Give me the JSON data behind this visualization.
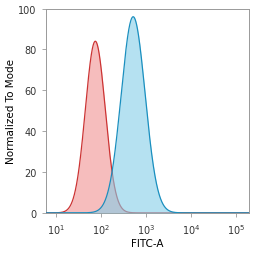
{
  "title": "",
  "xlabel": "FITC-A",
  "ylabel": "Normalized To Mode",
  "xlim_log": [
    0.78,
    5.3
  ],
  "ylim": [
    0,
    100
  ],
  "yticks": [
    0,
    20,
    40,
    60,
    80,
    100
  ],
  "red_peak_log_mean": 1.88,
  "red_peak_log_std": 0.22,
  "red_peak_height": 84,
  "blue_peak_log_mean": 2.72,
  "blue_peak_log_std": 0.265,
  "blue_peak_height": 96,
  "red_fill_color": "#f08888",
  "red_edge_color": "#cc3333",
  "blue_fill_color": "#85cde8",
  "blue_edge_color": "#1a8fbf",
  "red_fill_alpha": 0.55,
  "blue_fill_alpha": 0.6,
  "background_color": "#ffffff",
  "label_fontsize": 7.5,
  "tick_fontsize": 7.0,
  "spine_color": "#999999",
  "figsize": [
    2.55,
    2.55
  ],
  "dpi": 100
}
